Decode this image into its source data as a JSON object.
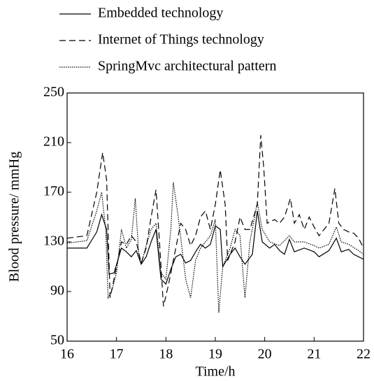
{
  "chart_data": {
    "type": "line",
    "xlabel": "Time/h",
    "ylabel": "Blood pressure/ mmHg",
    "xlim": [
      16,
      22
    ],
    "xticks": [
      16,
      17,
      18,
      19,
      20,
      21,
      22
    ],
    "ylim": [
      50,
      250
    ],
    "yticks": [
      50,
      90,
      130,
      170,
      210,
      250
    ],
    "series": [
      {
        "name": "Embedded technology",
        "color": "#000000",
        "dash": "solid",
        "x": [
          16,
          16.4,
          16.6,
          16.7,
          16.8,
          16.85,
          16.95,
          17.1,
          17.2,
          17.3,
          17.4,
          17.5,
          17.6,
          17.7,
          17.8,
          17.9,
          18.0,
          18.1,
          18.2,
          18.3,
          18.4,
          18.5,
          18.6,
          18.7,
          18.8,
          18.9,
          19.0,
          19.1,
          19.15,
          19.3,
          19.4,
          19.5,
          19.6,
          19.75,
          19.85,
          19.95,
          20.1,
          20.2,
          20.3,
          20.4,
          20.5,
          20.6,
          20.8,
          21.0,
          21.1,
          21.3,
          21.45,
          21.55,
          21.7,
          21.8,
          21.9,
          22.0
        ],
        "values": [
          125,
          125,
          138,
          152,
          140,
          104,
          105,
          125,
          122,
          118,
          123,
          112,
          118,
          130,
          140,
          100,
          96,
          108,
          118,
          120,
          113,
          115,
          122,
          128,
          125,
          128,
          143,
          140,
          110,
          120,
          125,
          118,
          112,
          120,
          155,
          130,
          125,
          128,
          123,
          120,
          132,
          122,
          125,
          122,
          118,
          123,
          133,
          122,
          124,
          120,
          118,
          116
        ]
      },
      {
        "name": "Internet of Things technology",
        "color": "#000000",
        "dash": "dashed",
        "x": [
          16,
          16.4,
          16.6,
          16.72,
          16.8,
          16.87,
          16.95,
          17.1,
          17.2,
          17.3,
          17.4,
          17.5,
          17.6,
          17.7,
          17.8,
          17.87,
          17.95,
          18.05,
          18.2,
          18.3,
          18.4,
          18.5,
          18.6,
          18.7,
          18.8,
          18.9,
          19.0,
          19.1,
          19.2,
          19.25,
          19.4,
          19.5,
          19.6,
          19.7,
          19.85,
          19.92,
          19.98,
          20.05,
          20.2,
          20.3,
          20.4,
          20.52,
          20.6,
          20.7,
          20.8,
          20.9,
          21.0,
          21.1,
          21.2,
          21.3,
          21.42,
          21.5,
          21.6,
          21.7,
          21.8,
          21.9,
          22.0
        ],
        "values": [
          133,
          135,
          170,
          202,
          180,
          85,
          100,
          130,
          128,
          135,
          130,
          113,
          125,
          150,
          172,
          130,
          78,
          95,
          125,
          145,
          140,
          127,
          135,
          150,
          155,
          140,
          160,
          188,
          160,
          115,
          130,
          150,
          140,
          140,
          160,
          216,
          190,
          145,
          148,
          145,
          150,
          165,
          145,
          152,
          140,
          150,
          142,
          135,
          140,
          145,
          173,
          145,
          140,
          138,
          137,
          133,
          125
        ]
      },
      {
        "name": "SpringMvc architectural pattern",
        "color": "#000000",
        "dash": "dotted",
        "x": [
          16,
          16.4,
          16.6,
          16.7,
          16.78,
          16.83,
          16.9,
          17.0,
          17.1,
          17.2,
          17.3,
          17.38,
          17.45,
          17.5,
          17.6,
          17.7,
          17.8,
          17.9,
          18.0,
          18.1,
          18.15,
          18.25,
          18.4,
          18.5,
          18.6,
          18.7,
          18.8,
          18.9,
          19.0,
          19.07,
          19.15,
          19.3,
          19.4,
          19.5,
          19.6,
          19.7,
          19.85,
          19.95,
          20.1,
          20.3,
          20.5,
          20.6,
          20.8,
          21.0,
          21.1,
          21.3,
          21.45,
          21.55,
          21.7,
          21.9,
          22.0
        ],
        "values": [
          129,
          131,
          155,
          170,
          140,
          85,
          90,
          105,
          140,
          125,
          132,
          165,
          120,
          112,
          127,
          140,
          145,
          105,
          100,
          140,
          178,
          150,
          100,
          85,
          115,
          125,
          130,
          135,
          148,
          73,
          110,
          125,
          140,
          135,
          85,
          130,
          162,
          140,
          130,
          127,
          135,
          130,
          130,
          127,
          125,
          128,
          142,
          130,
          128,
          123,
          120
        ]
      }
    ]
  }
}
